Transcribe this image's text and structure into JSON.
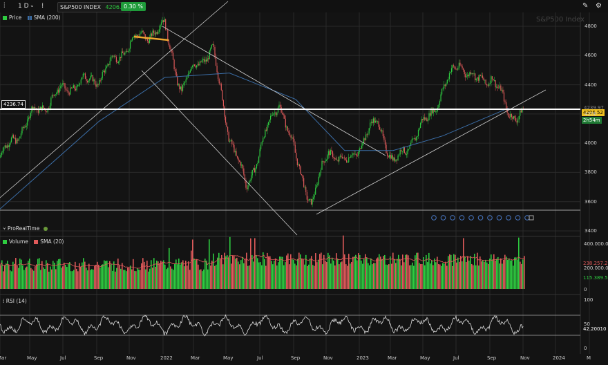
{
  "toolbar": {
    "timeframe": "1 D",
    "symbol": "S&P500 INDEX",
    "price": "4206.52",
    "change": "0.30 %"
  },
  "watermark": "S&P500 Index",
  "legend": {
    "price": "Price",
    "sma": "SMA (200)",
    "volume": "Volume",
    "vol_sma": "SMA (20)",
    "rsi": "RSI (14)",
    "source": "ProRealTime"
  },
  "colors": {
    "up": "#2ecc40",
    "down": "#e05a5a",
    "sma": "#3b6ea8",
    "level": "#ffffff",
    "highlight": "#f0a830"
  },
  "price_axis": [
    "4800",
    "4600",
    "4400",
    "4200",
    "4000",
    "3800",
    "3600",
    "3400"
  ],
  "tags": {
    "level": "4236.74",
    "price": "4206.52",
    "countdown": "2h54m",
    "sma_val": "4239.97",
    "vol_top": "400.000.0",
    "vol_mid1": "238.257.2",
    "vol_mid2": "200.000.0",
    "vol_low": "115.389.5",
    "vol_zero": "0",
    "rsi_top": "100",
    "rsi_mid": "50",
    "rsi_val": "42.20010",
    "rsi_zero": "0"
  },
  "months": [
    "Mar",
    "May",
    "Jul",
    "Sep",
    "Nov",
    "2022",
    "Mar",
    "May",
    "Jul",
    "Sep",
    "Nov",
    "2023",
    "Mar",
    "May",
    "Jul",
    "Sep",
    "Nov",
    "2024",
    "M"
  ],
  "chart_data": {
    "type": "candlestick",
    "title": "S&P500 Index",
    "timeframe": "1 D",
    "x_range": [
      "2021-03",
      "2024-03"
    ],
    "ylim": [
      3400,
      4850
    ],
    "series": [
      {
        "name": "Price",
        "points": [
          [
            "2021-03",
            3900
          ],
          [
            "2021-05",
            4200
          ],
          [
            "2021-07",
            4380
          ],
          [
            "2021-09",
            4450
          ],
          [
            "2021-11",
            4700
          ],
          [
            "2022-01",
            4800
          ],
          [
            "2022-02",
            4350
          ],
          [
            "2022-03",
            4560
          ],
          [
            "2022-04",
            4620
          ],
          [
            "2022-05",
            4050
          ],
          [
            "2022-06",
            3700
          ],
          [
            "2022-08",
            4300
          ],
          [
            "2022-09",
            3900
          ],
          [
            "2022-10",
            3580
          ],
          [
            "2022-11",
            3970
          ],
          [
            "2022-12",
            3850
          ],
          [
            "2023-02",
            4160
          ],
          [
            "2023-03",
            3850
          ],
          [
            "2023-05",
            4150
          ],
          [
            "2023-07",
            4560
          ],
          [
            "2023-08",
            4420
          ],
          [
            "2023-09",
            4460
          ],
          [
            "2023-10",
            4200
          ],
          [
            "2023-10-31",
            4206.52
          ]
        ]
      },
      {
        "name": "SMA (200)",
        "points": [
          [
            "2021-03",
            3550
          ],
          [
            "2021-09",
            4150
          ],
          [
            "2022-01",
            4450
          ],
          [
            "2022-05",
            4480
          ],
          [
            "2022-09",
            4300
          ],
          [
            "2022-12",
            3950
          ],
          [
            "2023-03",
            3950
          ],
          [
            "2023-06",
            4050
          ],
          [
            "2023-10",
            4239.97
          ]
        ]
      }
    ],
    "horizontal_levels": [
      4236.74,
      3490
    ]
  }
}
